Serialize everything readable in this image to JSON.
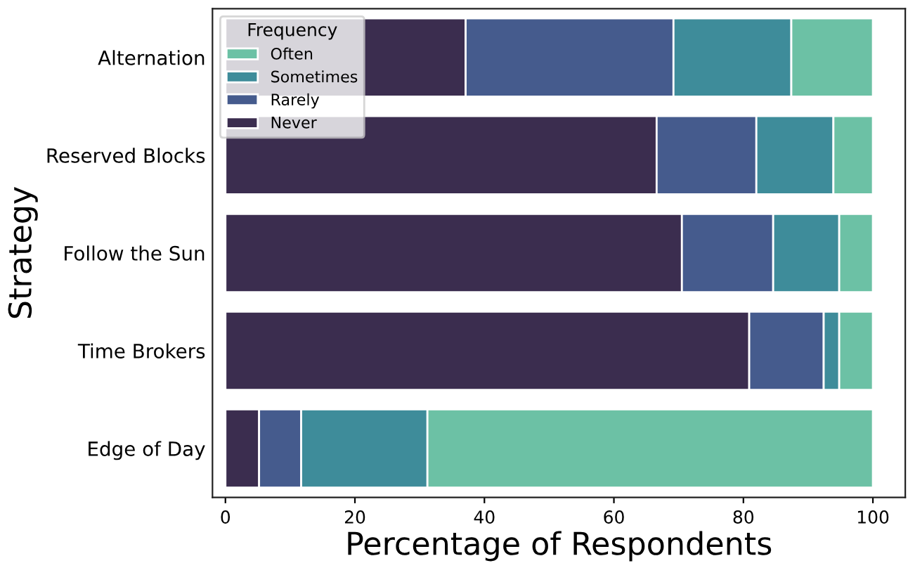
{
  "chart_data": {
    "type": "bar",
    "orientation": "horizontal",
    "stacked": true,
    "xlabel": "Percentage of Respondents",
    "ylabel": "Strategy",
    "legend_title": "Frequency",
    "legend": "top left",
    "grid": false,
    "categories": [
      "Alternation",
      "Reserved Blocks",
      "Follow the Sun",
      "Time Brokers",
      "Edge of Day"
    ],
    "xlim": [
      -2,
      105
    ],
    "xticks": [
      0,
      20,
      40,
      60,
      80,
      100
    ],
    "series": [
      {
        "name": "Never",
        "color": "#3b2d4f",
        "values": [
          37.1,
          66.6,
          70.5,
          80.9,
          5.2
        ]
      },
      {
        "name": "Rarely",
        "color": "#455b8d",
        "values": [
          32.1,
          15.4,
          14.1,
          11.5,
          6.5
        ]
      },
      {
        "name": "Sometimes",
        "color": "#3e8c9a",
        "values": [
          18.2,
          11.9,
          10.2,
          2.4,
          19.5
        ]
      },
      {
        "name": "Often",
        "color": "#6cc1a5",
        "values": [
          12.6,
          6.1,
          5.2,
          5.2,
          68.8
        ]
      }
    ]
  }
}
